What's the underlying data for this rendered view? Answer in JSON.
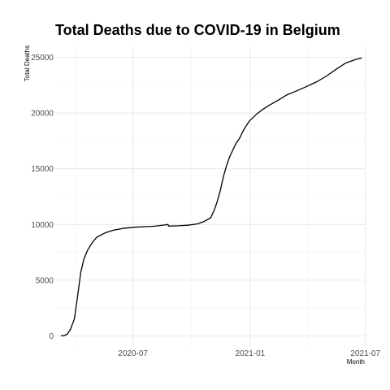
{
  "chart_data": {
    "type": "line",
    "title": "Total Deaths due to COVID-19 in Belgium",
    "xlabel": "Month",
    "ylabel": "Total Deaths",
    "ylim": [
      -1000,
      26000
    ],
    "y_ticks": [
      0,
      5000,
      10000,
      15000,
      20000,
      25000
    ],
    "y_tick_labels": [
      "0",
      "5000",
      "10000",
      "15000",
      "20000",
      "25000"
    ],
    "x_axis_dates": [
      "2020-03-01",
      "2021-06-30"
    ],
    "x_ticks": [
      "2020-07-01",
      "2021-01-01",
      "2021-07-01"
    ],
    "x_tick_labels": [
      "2020-07",
      "2021-01",
      "2021-07"
    ],
    "x_minor_ticks": [
      "2020-04-01",
      "2020-10-01",
      "2021-04-01"
    ],
    "grid": true,
    "legend": "none",
    "series": [
      {
        "name": "Total Deaths",
        "color": "#000000",
        "points": [
          [
            "2020-03-10",
            0
          ],
          [
            "2020-03-15",
            20
          ],
          [
            "2020-03-20",
            150
          ],
          [
            "2020-03-25",
            600
          ],
          [
            "2020-03-31",
            1500
          ],
          [
            "2020-04-05",
            3500
          ],
          [
            "2020-04-10",
            5700
          ],
          [
            "2020-04-15",
            6900
          ],
          [
            "2020-04-20",
            7600
          ],
          [
            "2020-04-25",
            8100
          ],
          [
            "2020-04-30",
            8500
          ],
          [
            "2020-05-05",
            8850
          ],
          [
            "2020-05-10",
            9000
          ],
          [
            "2020-05-15",
            9150
          ],
          [
            "2020-05-20",
            9280
          ],
          [
            "2020-05-31",
            9480
          ],
          [
            "2020-06-15",
            9640
          ],
          [
            "2020-06-30",
            9740
          ],
          [
            "2020-07-15",
            9790
          ],
          [
            "2020-07-31",
            9830
          ],
          [
            "2020-08-10",
            9880
          ],
          [
            "2020-08-20",
            9950
          ],
          [
            "2020-08-25",
            10000
          ],
          [
            "2020-08-26",
            9850
          ],
          [
            "2020-09-10",
            9880
          ],
          [
            "2020-09-25",
            9930
          ],
          [
            "2020-10-10",
            10050
          ],
          [
            "2020-10-20",
            10250
          ],
          [
            "2020-10-31",
            10600
          ],
          [
            "2020-11-05",
            11200
          ],
          [
            "2020-11-10",
            12000
          ],
          [
            "2020-11-15",
            13000
          ],
          [
            "2020-11-20",
            14300
          ],
          [
            "2020-11-25",
            15300
          ],
          [
            "2020-11-30",
            16100
          ],
          [
            "2020-12-05",
            16700
          ],
          [
            "2020-12-10",
            17300
          ],
          [
            "2020-12-15",
            17700
          ],
          [
            "2020-12-20",
            18300
          ],
          [
            "2020-12-25",
            18800
          ],
          [
            "2020-12-31",
            19300
          ],
          [
            "2021-01-10",
            19850
          ],
          [
            "2021-01-20",
            20300
          ],
          [
            "2021-01-31",
            20700
          ],
          [
            "2021-02-15",
            21200
          ],
          [
            "2021-02-28",
            21650
          ],
          [
            "2021-03-15",
            22000
          ],
          [
            "2021-03-31",
            22400
          ],
          [
            "2021-04-15",
            22800
          ],
          [
            "2021-04-30",
            23300
          ],
          [
            "2021-05-15",
            23900
          ],
          [
            "2021-05-31",
            24500
          ],
          [
            "2021-06-15",
            24800
          ],
          [
            "2021-06-25",
            24950
          ]
        ]
      }
    ]
  }
}
